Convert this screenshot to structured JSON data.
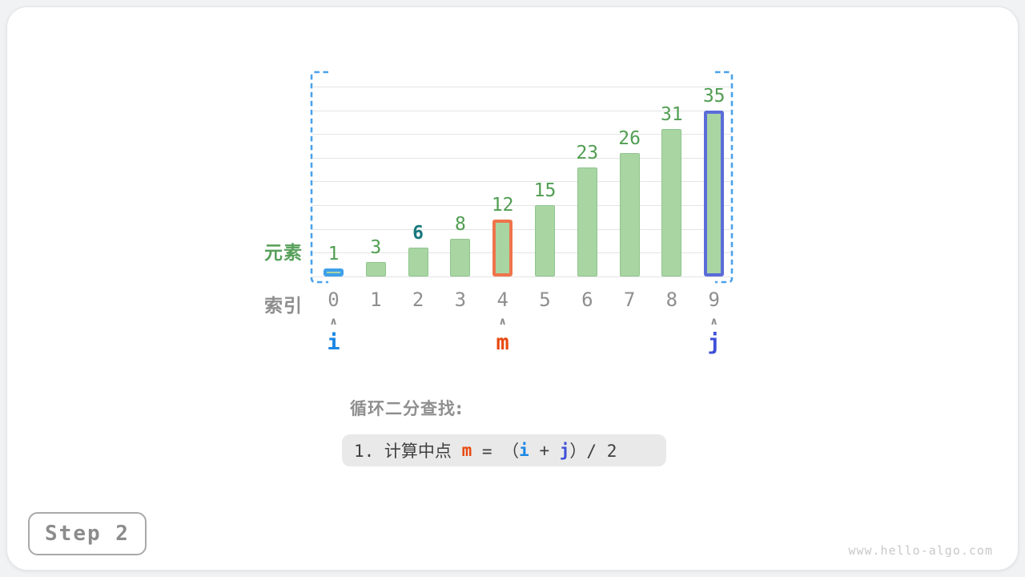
{
  "caption": "循环二分查找:",
  "step_label": "Step 2",
  "watermark": "www.hello-algo.com",
  "formula": {
    "segments": [
      {
        "text": "1. 计算中点 ",
        "role": "plain"
      },
      {
        "text": "m",
        "role": "m"
      },
      {
        "text": " = （",
        "role": "plain"
      },
      {
        "text": "i",
        "role": "i"
      },
      {
        "text": " + ",
        "role": "plain"
      },
      {
        "text": "j",
        "role": "j"
      },
      {
        "text": "）/ 2",
        "role": "plain"
      }
    ]
  },
  "chart_data": {
    "type": "bar",
    "title": "",
    "categories": [
      "0",
      "1",
      "2",
      "3",
      "4",
      "5",
      "6",
      "7",
      "8",
      "9"
    ],
    "values": [
      1,
      3,
      6,
      8,
      12,
      15,
      23,
      26,
      31,
      35
    ],
    "xlabel": "索引",
    "ylabel": "元素",
    "ylim": [
      0,
      40
    ],
    "grid_step": 5,
    "grid": true,
    "bar_color": "#a9d5a3",
    "value_label_color": "#519e52",
    "emphasized_value": {
      "index": 2,
      "value": 6,
      "color": "#17797c"
    },
    "highlighted_bars": [
      {
        "index": 0,
        "pointer": "i",
        "border_color": "#3fa0ea"
      },
      {
        "index": 4,
        "pointer": "m",
        "border_color": "#ef744b"
      },
      {
        "index": 9,
        "pointer": "j",
        "border_color": "#5b6cd9"
      }
    ],
    "pointers": [
      {
        "index": 0,
        "label": "i",
        "color": "#1b87e5"
      },
      {
        "index": 4,
        "label": "m",
        "color": "#e8490f"
      },
      {
        "index": 9,
        "label": "j",
        "color": "#3d4fd8"
      }
    ],
    "search_range": {
      "from_index": 0,
      "to_index": 9,
      "bracket_color": "#4aa2ec"
    }
  }
}
